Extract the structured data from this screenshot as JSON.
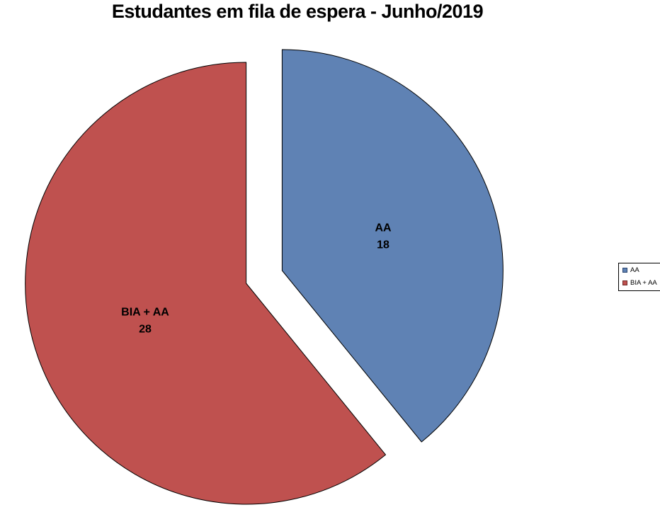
{
  "chart_data": {
    "type": "pie",
    "title": "Estudantes em fila de espera - Junho/2019",
    "categories": [
      "AA",
      "BIA + AA"
    ],
    "values": [
      18,
      28
    ],
    "slices": [
      {
        "label": "AA",
        "value": 18,
        "color": "#5F82B4",
        "marker_border": "#2A4570"
      },
      {
        "label": "BIA + AA",
        "value": 28,
        "color": "#BF514F",
        "marker_border": "#6E2826"
      }
    ],
    "start_angle_deg": 0,
    "direction": "clockwise",
    "exploded": true,
    "slice_border_color": "#000000",
    "background": "#FFFFFF",
    "data_label_format": "category_and_value",
    "legend": {
      "position": "right",
      "entries": [
        "AA",
        "BIA + AA"
      ],
      "border_color": "#000000"
    }
  }
}
